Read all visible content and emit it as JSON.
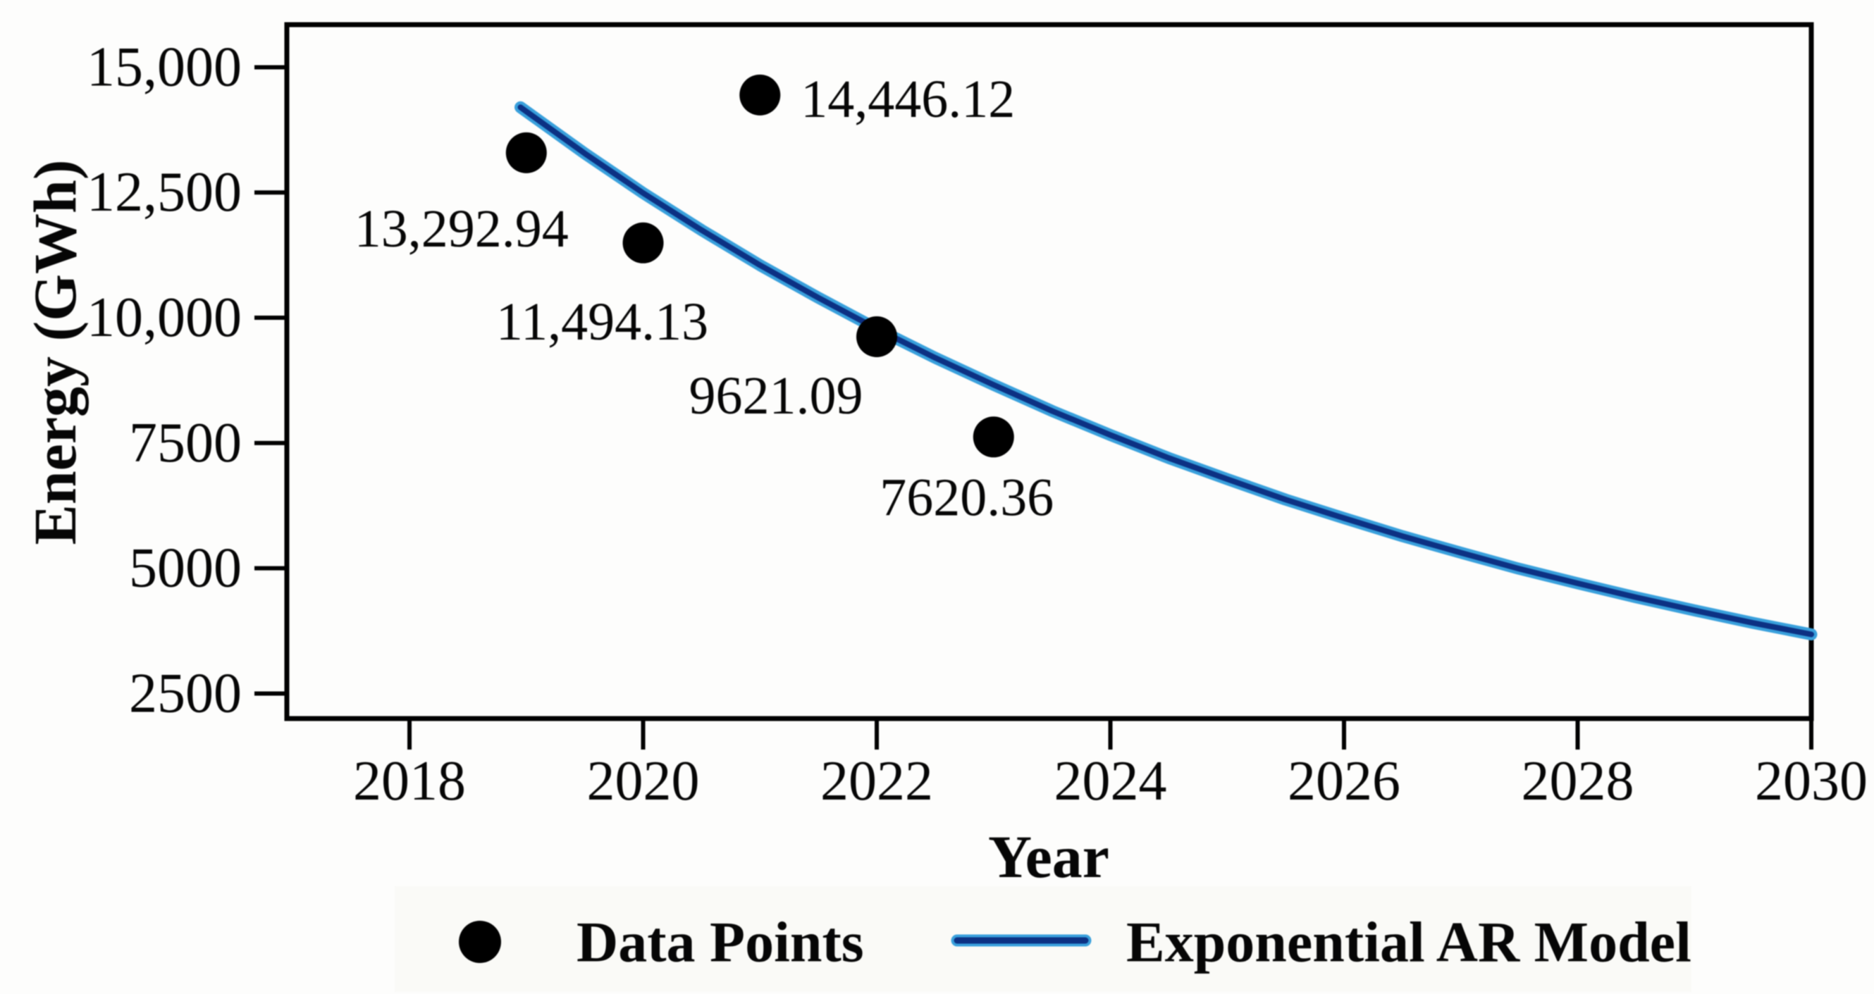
{
  "figure": {
    "background": "#fdfdfc",
    "text_color": "#060606",
    "axis_color": "#000000"
  },
  "chart_data": {
    "type": "scatter",
    "title": "",
    "xlabel": "Year",
    "ylabel": "Energy (GWh)",
    "grid": false,
    "legend_position": "bottom-center",
    "x_axis": {
      "min": 2016.95,
      "max": 2030,
      "ticks": [
        {
          "value": 2018,
          "label": "2018"
        },
        {
          "value": 2020,
          "label": "2020"
        },
        {
          "value": 2022,
          "label": "2022"
        },
        {
          "value": 2024,
          "label": "2024"
        },
        {
          "value": 2026,
          "label": "2026"
        },
        {
          "value": 2028,
          "label": "2028"
        },
        {
          "value": 2030,
          "label": "2030"
        }
      ]
    },
    "y_axis": {
      "min": 2000,
      "max": 15850,
      "ticks": [
        {
          "value": 15000,
          "label": "15,000"
        },
        {
          "value": 12500,
          "label": "12,500"
        },
        {
          "value": 10000,
          "label": "10,000"
        },
        {
          "value": 7500,
          "label": "7500"
        },
        {
          "value": 5000,
          "label": "5000"
        },
        {
          "value": 2500,
          "label": "2500"
        }
      ]
    },
    "series": [
      {
        "name": "Data Points",
        "type": "scatter",
        "color": "#000000",
        "marker_radius_px": 29,
        "points": [
          {
            "year": 2019,
            "value": 13292.94,
            "label": "13,292.94",
            "label_dx": -92,
            "label_dy": 108,
            "label_anchor": "middle"
          },
          {
            "year": 2020,
            "value": 11494.13,
            "label": "11,494.13",
            "label_dx": -58,
            "label_dy": 112,
            "label_anchor": "middle"
          },
          {
            "year": 2021,
            "value": 14446.12,
            "label": "14,446.12",
            "label_dx": 58,
            "label_dy": 6,
            "label_anchor": "start"
          },
          {
            "year": 2022,
            "value": 9621.09,
            "label": "9621.09",
            "label_dx": -143,
            "label_dy": 84,
            "label_anchor": "middle"
          },
          {
            "year": 2023,
            "value": 7620.36,
            "label": "7620.36",
            "label_dx": -38,
            "label_dy": 86,
            "label_anchor": "middle"
          }
        ]
      },
      {
        "name": "Exponential AR Model",
        "type": "line",
        "color_core": "#0c3183",
        "color_halo": "#39a0dc",
        "points": [
          [
            2018.95,
            14200
          ],
          [
            2019.5,
            13280
          ],
          [
            2020,
            12490
          ],
          [
            2020.5,
            11750
          ],
          [
            2021,
            11050
          ],
          [
            2021.5,
            10400
          ],
          [
            2022,
            9780
          ],
          [
            2022.5,
            9200
          ],
          [
            2023,
            8660
          ],
          [
            2023.5,
            8140
          ],
          [
            2024,
            7660
          ],
          [
            2024.5,
            7200
          ],
          [
            2025,
            6780
          ],
          [
            2025.5,
            6370
          ],
          [
            2026,
            6000
          ],
          [
            2026.5,
            5640
          ],
          [
            2027,
            5310
          ],
          [
            2027.5,
            4990
          ],
          [
            2028,
            4700
          ],
          [
            2028.5,
            4420
          ],
          [
            2029,
            4160
          ],
          [
            2029.5,
            3910
          ],
          [
            2030,
            3680
          ]
        ]
      }
    ],
    "legend": {
      "items": [
        {
          "marker": "dot",
          "label": "Data Points"
        },
        {
          "marker": "line",
          "label": "Exponential AR Model"
        }
      ]
    }
  }
}
